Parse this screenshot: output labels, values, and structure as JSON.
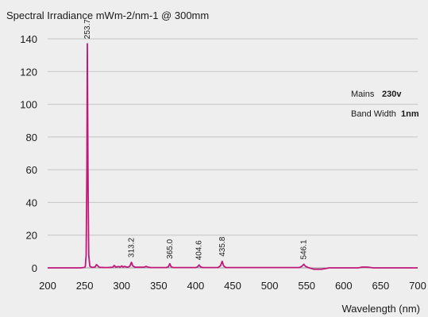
{
  "chart_data": {
    "type": "line",
    "title": "Spectral Irradiance mWm-2/nm-1 @ 300mm",
    "xlabel": "Wavelength (nm)",
    "ylabel": "",
    "xlim": [
      200,
      700
    ],
    "ylim": [
      0,
      140
    ],
    "xticks": [
      200,
      250,
      300,
      350,
      400,
      450,
      500,
      550,
      600,
      650,
      700
    ],
    "yticks": [
      0,
      20,
      40,
      60,
      80,
      100,
      120,
      140
    ],
    "grid": true,
    "line_color": "#c0187a",
    "x": [
      200,
      245,
      250,
      251,
      252,
      253,
      253.7,
      254.5,
      255.5,
      257,
      260,
      264,
      266,
      270,
      280,
      288,
      290,
      292,
      296,
      298,
      300,
      302,
      304,
      308,
      311,
      313.2,
      315,
      318,
      330,
      333,
      336,
      340,
      360,
      363,
      365.0,
      367,
      370,
      400,
      402.5,
      404.6,
      406.5,
      410,
      430,
      433.5,
      435.8,
      437.8,
      441,
      500,
      540,
      543.5,
      546.1,
      548.5,
      552,
      560,
      570,
      577,
      580,
      590,
      620,
      625,
      632,
      640,
      660,
      700
    ],
    "y": [
      0,
      0,
      0.3,
      1,
      8,
      60,
      137,
      60,
      8,
      1,
      0.3,
      0.5,
      2,
      0.3,
      0.2,
      0.4,
      1.5,
      0.5,
      0.8,
      0.4,
      1.2,
      0.5,
      0.9,
      0.4,
      1,
      3.4,
      1.2,
      0.4,
      0.4,
      0.9,
      0.4,
      0.2,
      0.2,
      0.6,
      2.5,
      0.6,
      0.2,
      0.2,
      0.6,
      1.8,
      0.6,
      0.2,
      0.2,
      1.2,
      4.0,
      1.2,
      0.2,
      0.2,
      0.2,
      0.9,
      2.2,
      0.9,
      0.2,
      -0.8,
      -0.8,
      -0.3,
      0,
      0,
      0,
      0.5,
      0.5,
      0,
      0,
      0
    ],
    "peak_labels": [
      "253.7",
      "313.2",
      "365.0",
      "404.6",
      "435.8",
      "546.1"
    ],
    "peak_wavelengths": [
      253.7,
      313.2,
      365.0,
      404.6,
      435.8,
      546.1
    ],
    "peak_values": [
      137,
      3.4,
      2.5,
      1.8,
      4.0,
      2.2
    ],
    "annotations": {
      "mains_label": "Mains",
      "mains_value": "230v",
      "bandwidth_label": "Band Width",
      "bandwidth_value": "1nm"
    }
  }
}
